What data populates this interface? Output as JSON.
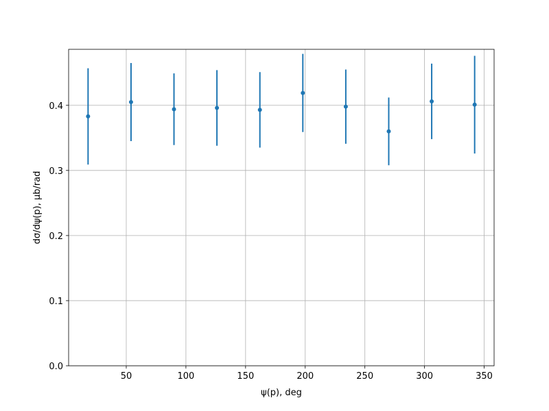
{
  "chart_data": {
    "type": "errorbar",
    "xlabel": "ψ(p), deg",
    "ylabel": "dσ/dψ(p), μb/rad",
    "x": [
      18,
      54,
      90,
      126,
      162,
      198,
      234,
      270,
      306,
      342
    ],
    "values": [
      0.383,
      0.405,
      0.394,
      0.396,
      0.393,
      0.419,
      0.398,
      0.36,
      0.406,
      0.401
    ],
    "errors": [
      0.074,
      0.06,
      0.055,
      0.058,
      0.058,
      0.06,
      0.057,
      0.052,
      0.058,
      0.075
    ],
    "color": "#1f77b4",
    "xlim": [
      1.7,
      358.3
    ],
    "ylim": [
      0,
      0.486
    ],
    "xticks": [
      50,
      100,
      150,
      200,
      250,
      300,
      350
    ],
    "yticks": [
      {
        "value": 0,
        "label": "0.0"
      },
      {
        "value": 0.1,
        "label": "0.1"
      },
      {
        "value": 0.2,
        "label": "0.2"
      },
      {
        "value": 0.3,
        "label": "0.3"
      },
      {
        "value": 0.4,
        "label": "0.4"
      }
    ],
    "grid": true
  }
}
